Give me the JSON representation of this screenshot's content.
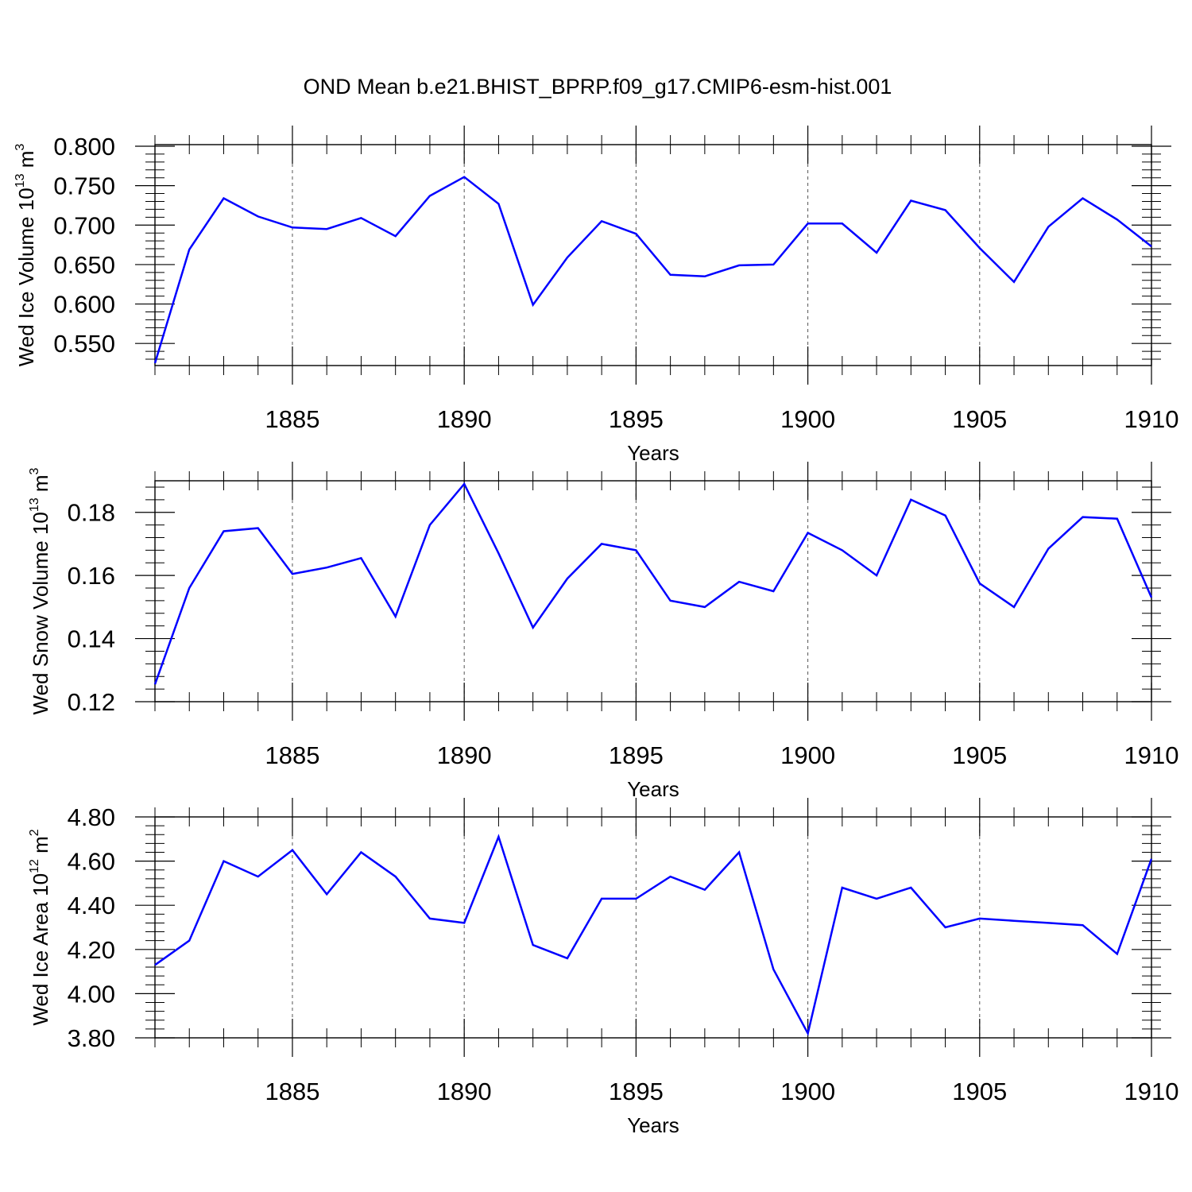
{
  "title": "OND Mean b.e21.BHIST_BPRP.f09_g17.CMIP6-esm-hist.001",
  "colors": {
    "line": "#0000ff",
    "axis": "#000000",
    "grid": "#555555"
  },
  "chart_data": [
    {
      "type": "line",
      "xlabel": "Years",
      "ylabel": {
        "main": "Wed Ice Volume 10",
        "exp": "13",
        "unit": " m",
        "unit_exp": "3"
      },
      "xlim": [
        1881,
        1910
      ],
      "ylim": [
        0.522,
        0.802
      ],
      "x_ticks": [
        1885,
        1890,
        1895,
        1900,
        1905,
        1910
      ],
      "y_ticks": [
        0.55,
        0.6,
        0.65,
        0.7,
        0.75,
        0.8
      ],
      "y_tick_labels": [
        "0.550",
        "0.600",
        "0.650",
        "0.700",
        "0.750",
        "0.800"
      ],
      "x_minor_step": 1,
      "y_minor_step": 0.01,
      "grid": "x-major-dashed",
      "x": [
        1881,
        1882,
        1883,
        1884,
        1885,
        1886,
        1887,
        1888,
        1889,
        1890,
        1891,
        1892,
        1893,
        1894,
        1895,
        1896,
        1897,
        1898,
        1899,
        1900,
        1901,
        1902,
        1903,
        1904,
        1905,
        1906,
        1907,
        1908,
        1909,
        1910
      ],
      "values": [
        0.525,
        0.669,
        0.734,
        0.711,
        0.697,
        0.695,
        0.709,
        0.686,
        0.737,
        0.761,
        0.727,
        0.599,
        0.659,
        0.705,
        0.689,
        0.637,
        0.635,
        0.649,
        0.65,
        0.702,
        0.702,
        0.665,
        0.731,
        0.719,
        0.671,
        0.628,
        0.698,
        0.734,
        0.707,
        0.673
      ]
    },
    {
      "type": "line",
      "xlabel": "Years",
      "ylabel": {
        "main": "Wed Snow Volume 10",
        "exp": "13",
        "unit": " m",
        "unit_exp": "3"
      },
      "xlim": [
        1881,
        1910
      ],
      "ylim": [
        0.12,
        0.19
      ],
      "x_ticks": [
        1885,
        1890,
        1895,
        1900,
        1905,
        1910
      ],
      "y_ticks": [
        0.12,
        0.14,
        0.16,
        0.18
      ],
      "y_tick_labels": [
        "0.12",
        "0.14",
        "0.16",
        "0.18"
      ],
      "x_minor_step": 1,
      "y_minor_step": 0.004,
      "grid": "x-major-dashed",
      "x": [
        1881,
        1882,
        1883,
        1884,
        1885,
        1886,
        1887,
        1888,
        1889,
        1890,
        1891,
        1892,
        1893,
        1894,
        1895,
        1896,
        1897,
        1898,
        1899,
        1900,
        1901,
        1902,
        1903,
        1904,
        1905,
        1906,
        1907,
        1908,
        1909,
        1910
      ],
      "values": [
        0.1255,
        0.156,
        0.174,
        0.175,
        0.1605,
        0.1625,
        0.1655,
        0.147,
        0.176,
        0.189,
        0.167,
        0.1435,
        0.159,
        0.17,
        0.168,
        0.152,
        0.15,
        0.158,
        0.155,
        0.1735,
        0.168,
        0.16,
        0.184,
        0.179,
        0.1575,
        0.15,
        0.1685,
        0.1785,
        0.178,
        0.153
      ]
    },
    {
      "type": "line",
      "xlabel": "Years",
      "ylabel": {
        "main": "Wed Ice Area 10",
        "exp": "12",
        "unit": " m",
        "unit_exp": "2"
      },
      "xlim": [
        1881,
        1910
      ],
      "ylim": [
        3.8,
        4.8
      ],
      "x_ticks": [
        1885,
        1890,
        1895,
        1900,
        1905,
        1910
      ],
      "y_ticks": [
        3.8,
        4.0,
        4.2,
        4.4,
        4.6,
        4.8
      ],
      "y_tick_labels": [
        "3.80",
        "4.00",
        "4.20",
        "4.40",
        "4.60",
        "4.80"
      ],
      "x_minor_step": 1,
      "y_minor_step": 0.04,
      "grid": "x-major-dashed",
      "x": [
        1881,
        1882,
        1883,
        1884,
        1885,
        1886,
        1887,
        1888,
        1889,
        1890,
        1891,
        1892,
        1893,
        1894,
        1895,
        1896,
        1897,
        1898,
        1899,
        1900,
        1901,
        1902,
        1903,
        1904,
        1905,
        1906,
        1907,
        1908,
        1909,
        1910
      ],
      "values": [
        4.13,
        4.24,
        4.6,
        4.53,
        4.65,
        4.45,
        4.64,
        4.53,
        4.34,
        4.32,
        4.71,
        4.22,
        4.16,
        4.43,
        4.43,
        4.53,
        4.47,
        4.64,
        4.11,
        3.82,
        4.48,
        4.43,
        4.48,
        4.3,
        4.34,
        4.33,
        4.32,
        4.31,
        4.18,
        4.61
      ]
    }
  ]
}
